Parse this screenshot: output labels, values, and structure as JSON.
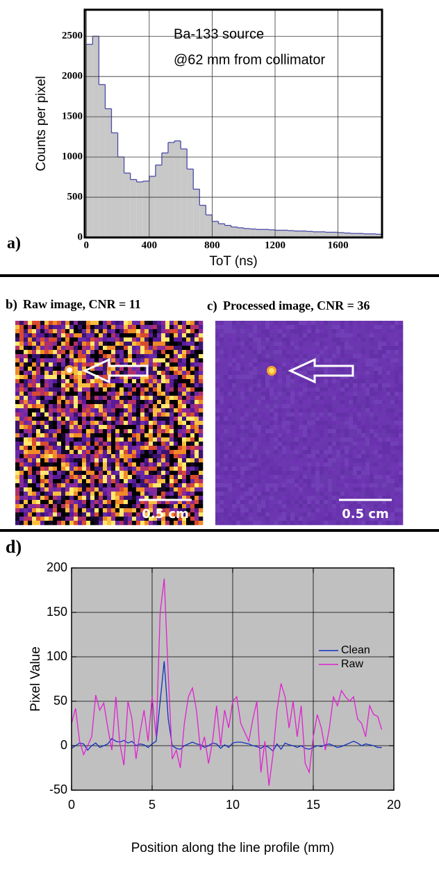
{
  "chart_data": [
    {
      "type": "histogram",
      "label": "a)",
      "x_label": "ToT (ns)",
      "y_label": "Counts per pixel",
      "annotations": [
        "Ba-133 source",
        "@62 mm from collimator"
      ],
      "bins": [
        0,
        40,
        80,
        120,
        160,
        200,
        240,
        280,
        320,
        360,
        400,
        440,
        480,
        520,
        560,
        600,
        640,
        680,
        720,
        760,
        800,
        840,
        880,
        920,
        960,
        1000,
        1040,
        1080,
        1120,
        1160,
        1200,
        1240,
        1280,
        1320,
        1360,
        1400,
        1440,
        1480,
        1520,
        1560,
        1600,
        1640,
        1680,
        1720,
        1760,
        1800,
        1840,
        1880
      ],
      "values": [
        2400,
        2500,
        1900,
        1600,
        1300,
        1000,
        800,
        720,
        690,
        700,
        760,
        900,
        1050,
        1180,
        1200,
        1100,
        850,
        600,
        400,
        280,
        200,
        170,
        150,
        130,
        120,
        110,
        105,
        100,
        100,
        95,
        90,
        90,
        85,
        80,
        80,
        75,
        70,
        70,
        65,
        65,
        60,
        55,
        50,
        50,
        45,
        45,
        40
      ],
      "color": "#c8c8c8",
      "edge_color": "#4a4aa8",
      "xlim": [
        -10,
        1880
      ],
      "ylim": [
        0,
        2830
      ],
      "xticks": [
        0,
        400,
        800,
        1200,
        1600
      ],
      "yticks": [
        0,
        500,
        1000,
        1500,
        2000,
        2500
      ],
      "grid": true
    },
    {
      "type": "line",
      "label": "d)",
      "x_label": "Position along the line profile (mm)",
      "y_label": "Pixel Value",
      "x": [
        0,
        0.25,
        0.5,
        0.75,
        1,
        1.25,
        1.5,
        1.75,
        2,
        2.25,
        2.5,
        2.75,
        3,
        3.25,
        3.5,
        3.75,
        4,
        4.25,
        4.5,
        4.75,
        5,
        5.25,
        5.5,
        5.75,
        6,
        6.25,
        6.5,
        6.75,
        7,
        7.25,
        7.5,
        7.75,
        8,
        8.25,
        8.5,
        8.75,
        9,
        9.25,
        9.5,
        9.75,
        10,
        10.25,
        10.5,
        10.75,
        11,
        11.25,
        11.5,
        11.75,
        12,
        12.25,
        12.5,
        12.75,
        13,
        13.25,
        13.5,
        13.75,
        14,
        14.25,
        14.5,
        14.75,
        15,
        15.25,
        15.5,
        15.75,
        16,
        16.25,
        16.5,
        16.75,
        17,
        17.25,
        17.5,
        17.75,
        18,
        18.25,
        18.5,
        18.75,
        19,
        19.25
      ],
      "series": [
        {
          "name": "Clean",
          "color": "#1030c0",
          "values": [
            -3,
            0,
            3,
            2,
            -5,
            0,
            3,
            -2,
            0,
            2,
            8,
            5,
            4,
            6,
            3,
            5,
            0,
            2,
            1,
            -2,
            2,
            5,
            50,
            95,
            30,
            0,
            -3,
            -4,
            0,
            2,
            4,
            2,
            1,
            -2,
            0,
            3,
            2,
            -3,
            1,
            -2,
            3,
            4,
            4,
            3,
            2,
            0,
            -1,
            -3,
            0,
            -2,
            -6,
            2,
            -4,
            3,
            1,
            0,
            -2,
            0,
            -3,
            -4,
            -2,
            0,
            -1,
            1,
            2,
            0,
            -2,
            -1,
            1,
            3,
            5,
            3,
            0,
            2,
            1,
            0,
            -2,
            -2
          ]
        },
        {
          "name": "Raw",
          "color": "#e020d0",
          "values": [
            25,
            42,
            5,
            -10,
            0,
            10,
            57,
            40,
            48,
            20,
            -5,
            55,
            2,
            -22,
            50,
            30,
            -15,
            15,
            40,
            5,
            55,
            10,
            150,
            188,
            80,
            -15,
            -5,
            -25,
            25,
            55,
            65,
            40,
            -5,
            10,
            -20,
            5,
            45,
            0,
            40,
            20,
            50,
            55,
            25,
            15,
            5,
            30,
            50,
            -30,
            5,
            -45,
            -10,
            40,
            70,
            55,
            20,
            50,
            10,
            45,
            -20,
            -30,
            10,
            35,
            20,
            -5,
            20,
            55,
            45,
            62,
            55,
            50,
            55,
            30,
            25,
            10,
            45,
            35,
            33,
            18
          ]
        }
      ],
      "xlim": [
        0,
        20
      ],
      "ylim": [
        -50,
        200
      ],
      "xticks": [
        0,
        5,
        10,
        15,
        20
      ],
      "yticks": [
        -50,
        0,
        50,
        100,
        150,
        200
      ],
      "grid": true,
      "background": "#c0c0c0",
      "legend": "right"
    }
  ],
  "images": [
    {
      "label": "b)",
      "title": "Raw image, CNR = 11",
      "scale_bar": "0.5 cm"
    },
    {
      "label": "c)",
      "title": "Processed image, CNR = 36",
      "scale_bar": "0.5 cm"
    }
  ]
}
